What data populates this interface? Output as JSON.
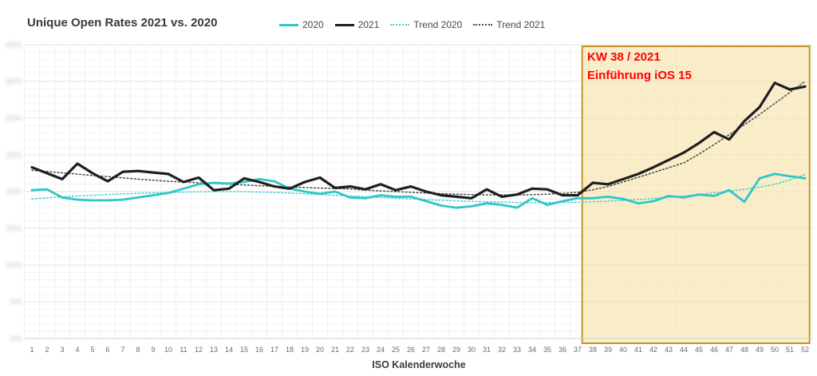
{
  "title": "Unique Open Rates 2021 vs. 2020",
  "x_axis_title": "ISO Kalenderwoche",
  "chart_data": {
    "type": "line",
    "title": "Unique Open Rates 2021 vs. 2020",
    "xlabel": "ISO Kalenderwoche",
    "x": [
      1,
      2,
      3,
      4,
      5,
      6,
      7,
      8,
      9,
      10,
      11,
      12,
      13,
      14,
      15,
      16,
      17,
      18,
      19,
      20,
      21,
      22,
      23,
      24,
      25,
      26,
      27,
      28,
      29,
      30,
      31,
      32,
      33,
      34,
      35,
      36,
      37,
      38,
      39,
      40,
      41,
      42,
      43,
      44,
      45,
      46,
      47,
      48,
      49,
      50,
      51,
      52
    ],
    "ylim": [
      0,
      40
    ],
    "y_unit": "%",
    "ytick_interval_major": 5,
    "ytick_interval_minor": 1,
    "ytick_labels": [
      "0%",
      "5%",
      "10%",
      "15%",
      "20%",
      "25%",
      "30%",
      "35%",
      "40%"
    ],
    "ytick_labels_blurred": true,
    "grid": "on",
    "legend_position": "top",
    "series": [
      {
        "name": "2020",
        "style": "solid",
        "color": "#2fc6c8",
        "values": [
          20.2,
          20.3,
          19.2,
          18.9,
          18.8,
          18.8,
          18.9,
          19.2,
          19.5,
          19.8,
          20.4,
          21.0,
          21.2,
          21.1,
          21.3,
          21.7,
          21.4,
          20.4,
          20.0,
          19.7,
          20.0,
          19.2,
          19.1,
          19.5,
          19.3,
          19.3,
          18.7,
          18.1,
          17.8,
          18.0,
          18.4,
          18.2,
          17.8,
          19.1,
          18.2,
          18.7,
          19.1,
          19.1,
          19.3,
          19.0,
          18.4,
          18.7,
          19.4,
          19.2,
          19.6,
          19.4,
          20.2,
          18.6,
          21.8,
          22.4,
          22.1,
          21.8
        ]
      },
      {
        "name": "2021",
        "style": "solid",
        "color": "#1f1f1f",
        "values": [
          23.3,
          22.5,
          21.7,
          23.8,
          22.5,
          21.4,
          22.7,
          22.8,
          22.6,
          22.4,
          21.3,
          21.9,
          20.2,
          20.4,
          21.8,
          21.3,
          20.7,
          20.4,
          21.3,
          21.9,
          20.5,
          20.7,
          20.3,
          21.0,
          20.2,
          20.7,
          20.0,
          19.5,
          19.3,
          19.1,
          20.3,
          19.3,
          19.6,
          20.4,
          20.3,
          19.5,
          19.5,
          21.2,
          21.0,
          21.7,
          22.4,
          23.3,
          24.3,
          25.3,
          26.6,
          28.1,
          27.1,
          29.6,
          31.5,
          34.8,
          33.9,
          34.3
        ]
      },
      {
        "name": "Trend 2020",
        "style": "dotted",
        "color": "#49cfd1",
        "values": [
          19.0,
          19.15,
          19.28,
          19.4,
          19.5,
          19.6,
          19.68,
          19.76,
          19.83,
          19.88,
          19.93,
          19.97,
          20.0,
          20.0,
          19.98,
          19.94,
          19.88,
          19.8,
          19.7,
          19.6,
          19.5,
          19.4,
          19.3,
          19.2,
          19.1,
          19.0,
          18.9,
          18.82,
          18.74,
          18.67,
          18.61,
          18.56,
          18.52,
          18.5,
          18.5,
          18.52,
          18.56,
          18.62,
          18.7,
          18.8,
          18.92,
          19.06,
          19.22,
          19.4,
          19.6,
          19.82,
          20.06,
          20.32,
          20.6,
          21.0,
          21.6,
          22.3
        ]
      },
      {
        "name": "Trend 2021",
        "style": "dotted",
        "color": "#474747",
        "values": [
          22.9,
          22.72,
          22.55,
          22.38,
          22.2,
          22.03,
          21.87,
          21.7,
          21.55,
          21.4,
          21.3,
          21.2,
          21.1,
          21.0,
          20.9,
          20.8,
          20.7,
          20.62,
          20.55,
          20.48,
          20.42,
          20.36,
          20.2,
          20.1,
          20.0,
          19.9,
          19.8,
          19.72,
          19.65,
          19.6,
          19.56,
          19.54,
          19.54,
          19.58,
          19.65,
          19.76,
          19.9,
          20.25,
          20.7,
          21.3,
          21.95,
          22.6,
          23.25,
          23.9,
          25.1,
          26.4,
          27.75,
          29.1,
          30.5,
          32.0,
          33.5,
          35.0
        ]
      }
    ],
    "highlight": {
      "from_week": 37.3,
      "to_week": 52.3,
      "fill": "#faf0d2",
      "border_color": "#c49420",
      "label_lines": [
        "KW 38 / 2021",
        "Einführung iOS 15"
      ],
      "label_color": "#ff0000"
    }
  }
}
